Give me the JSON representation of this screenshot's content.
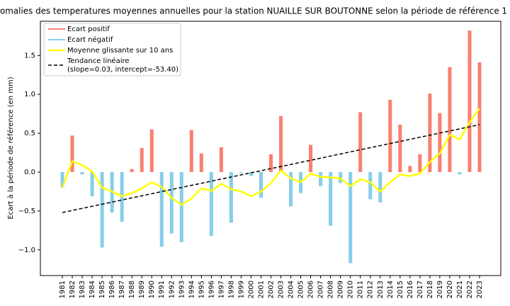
{
  "chart_data": {
    "type": "bar",
    "title": "omalies des temperatures moyennes annuelles pour la station NUAILLE SUR BOUTONNE selon la période de référence 1",
    "ylabel": "Ecart à la période de référence (en mm)",
    "categories": [
      "1981",
      "1982",
      "1983",
      "1984",
      "1985",
      "1986",
      "1987",
      "1988",
      "1989",
      "1990",
      "1991",
      "1992",
      "1993",
      "1994",
      "1995",
      "1996",
      "1997",
      "1998",
      "1999",
      "2000",
      "2001",
      "2002",
      "2003",
      "2004",
      "2005",
      "2006",
      "2007",
      "2008",
      "2009",
      "2010",
      "2011",
      "2012",
      "2013",
      "2014",
      "2015",
      "2016",
      "2017",
      "2018",
      "2019",
      "2020",
      "2021",
      "2022",
      "2023"
    ],
    "series": [
      {
        "name": "Ecart positif",
        "color": "#fa8072",
        "values": [
          null,
          0.47,
          null,
          null,
          null,
          null,
          null,
          0.04,
          0.31,
          0.55,
          null,
          null,
          null,
          0.54,
          0.24,
          null,
          0.32,
          null,
          null,
          null,
          null,
          0.23,
          0.72,
          null,
          null,
          0.35,
          null,
          null,
          null,
          null,
          0.77,
          null,
          null,
          0.93,
          0.61,
          0.08,
          0.23,
          1.01,
          0.76,
          1.35,
          null,
          1.82,
          1.41
        ]
      },
      {
        "name": "Ecart négatif",
        "color": "#87ceeb",
        "values": [
          -0.2,
          null,
          -0.03,
          -0.31,
          -0.97,
          -0.52,
          -0.64,
          null,
          null,
          null,
          -0.96,
          -0.79,
          -0.9,
          null,
          null,
          -0.82,
          null,
          -0.65,
          -0.01,
          -0.05,
          -0.33,
          null,
          null,
          -0.44,
          -0.27,
          null,
          -0.18,
          -0.69,
          -0.14,
          -1.17,
          null,
          -0.35,
          -0.39,
          null,
          null,
          null,
          null,
          null,
          null,
          null,
          -0.03,
          null,
          null
        ]
      },
      {
        "name": "Moyenne glissante sur 10 ans",
        "color": "#ffff00",
        "line": true,
        "values": [
          -0.2,
          0.14,
          0.09,
          0.01,
          -0.2,
          -0.25,
          -0.31,
          -0.27,
          -0.21,
          -0.13,
          -0.19,
          -0.33,
          -0.42,
          -0.34,
          -0.21,
          -0.24,
          -0.15,
          -0.22,
          -0.25,
          -0.31,
          -0.25,
          -0.14,
          0.02,
          -0.08,
          -0.13,
          -0.02,
          -0.06,
          -0.07,
          -0.08,
          -0.18,
          -0.09,
          -0.13,
          -0.25,
          -0.13,
          -0.03,
          -0.05,
          -0.02,
          0.13,
          0.24,
          0.48,
          0.42,
          0.64,
          0.82
        ]
      }
    ],
    "trend": {
      "name": [
        "Tendance linéaire",
        "(slope=0.03, intercept=-53.40)"
      ],
      "color": "#000000",
      "x": [
        "1981",
        "2023"
      ],
      "values": [
        -0.52,
        0.61
      ]
    },
    "ylim": [
      -1.33,
      1.94
    ],
    "yticks": [
      {
        "value": -1,
        "label": "−1.0"
      },
      {
        "value": -0.5,
        "label": "−0.5"
      },
      {
        "value": 0,
        "label": "0.0"
      },
      {
        "value": 0.5,
        "label": "0.5"
      },
      {
        "value": 1,
        "label": "1.0"
      },
      {
        "value": 1.5,
        "label": "1.5"
      }
    ],
    "grid": false,
    "legend": "upper left"
  }
}
